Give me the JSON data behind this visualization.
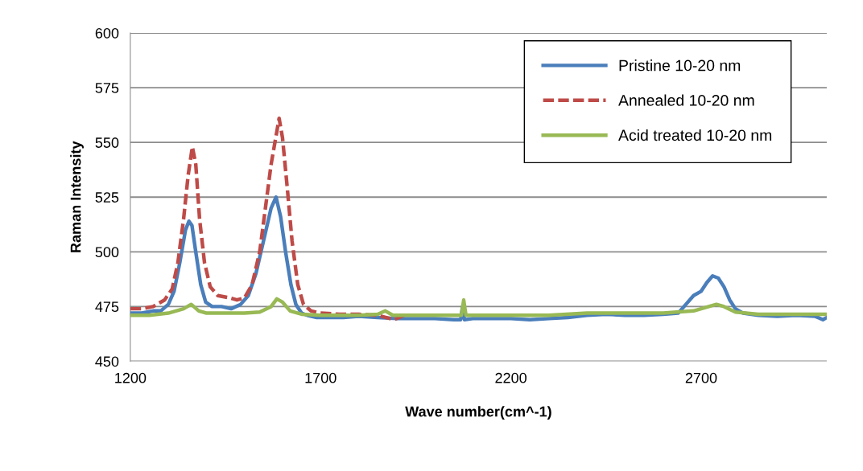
{
  "chart_data": {
    "type": "line",
    "xlabel": "Wave number(cm^-1)",
    "ylabel": "Raman Intensity",
    "xlim": [
      1200,
      3030
    ],
    "xticks": [
      1200,
      1700,
      2200,
      2700
    ],
    "ylim": [
      450,
      600
    ],
    "yticks": [
      450,
      475,
      500,
      525,
      550,
      575,
      600
    ],
    "grid": "y",
    "legend": "top right",
    "series": [
      {
        "name": "Pristine 10-20 nm",
        "color": "#4a7ebb",
        "line_style": "solid",
        "x": [
          1200,
          1230,
          1260,
          1280,
          1300,
          1315,
          1330,
          1345,
          1354,
          1362,
          1372,
          1385,
          1398,
          1415,
          1440,
          1465,
          1490,
          1510,
          1530,
          1550,
          1570,
          1583,
          1595,
          1608,
          1622,
          1635,
          1650,
          1665,
          1690,
          1720,
          1760,
          1800,
          1850,
          1900,
          1950,
          2000,
          2050,
          2068,
          2073,
          2078,
          2100,
          2150,
          2200,
          2250,
          2300,
          2350,
          2400,
          2450,
          2500,
          2550,
          2600,
          2640,
          2660,
          2680,
          2700,
          2715,
          2730,
          2745,
          2760,
          2775,
          2790,
          2810,
          2850,
          2900,
          2950,
          3000,
          3020,
          3030
        ],
        "values": [
          472,
          472,
          473,
          473,
          476,
          482,
          495,
          510,
          514,
          512,
          500,
          485,
          477,
          475,
          475,
          474,
          476,
          480,
          490,
          505,
          520,
          525,
          516,
          500,
          485,
          476,
          472,
          471,
          470,
          470,
          470,
          470.5,
          470,
          469.5,
          469.5,
          469.5,
          469,
          469,
          475,
          469,
          469.5,
          469.5,
          469.5,
          469,
          469.5,
          470,
          471,
          471.5,
          471,
          471,
          471.5,
          472,
          476,
          480,
          482,
          486,
          489,
          488,
          484,
          478,
          474,
          472,
          471,
          470.5,
          471,
          470.5,
          469,
          470
        ]
      },
      {
        "name": "Annealed 10-20 nm",
        "color": "#be4b48",
        "line_style": "dashed",
        "x": [
          1200,
          1230,
          1260,
          1290,
          1310,
          1325,
          1340,
          1352,
          1363,
          1372,
          1382,
          1395,
          1410,
          1430,
          1460,
          1480,
          1500,
          1520,
          1540,
          1555,
          1570,
          1585,
          1591,
          1600,
          1612,
          1625,
          1640,
          1655,
          1675,
          1700,
          1750,
          1800,
          1850,
          1893,
          1920
        ],
        "values": [
          474,
          474,
          475,
          478,
          483,
          495,
          515,
          535,
          548,
          540,
          515,
          495,
          484,
          480,
          479,
          478,
          479,
          485,
          500,
          520,
          540,
          555,
          561,
          552,
          530,
          505,
          485,
          476,
          473,
          472,
          471.5,
          471.5,
          471,
          469,
          471
        ]
      },
      {
        "name": "Acid treated 10-20 nm",
        "color": "#98b954",
        "line_style": "solid",
        "x": [
          1200,
          1250,
          1300,
          1340,
          1360,
          1380,
          1400,
          1450,
          1500,
          1540,
          1570,
          1585,
          1600,
          1620,
          1650,
          1700,
          1800,
          1850,
          1870,
          1890,
          1950,
          2000,
          2070,
          2076,
          2082,
          2150,
          2200,
          2300,
          2400,
          2500,
          2600,
          2680,
          2720,
          2740,
          2760,
          2790,
          2850,
          2950,
          3030
        ],
        "values": [
          471,
          471,
          472,
          474,
          476,
          473,
          472,
          472,
          472,
          472.5,
          475,
          478.5,
          477,
          473,
          471.5,
          471,
          471,
          471.5,
          473,
          471,
          471,
          471,
          471,
          478,
          471,
          471,
          471,
          471,
          472,
          472,
          472,
          473,
          475,
          476,
          475,
          472.5,
          471.5,
          471.5,
          471.5
        ]
      }
    ]
  }
}
